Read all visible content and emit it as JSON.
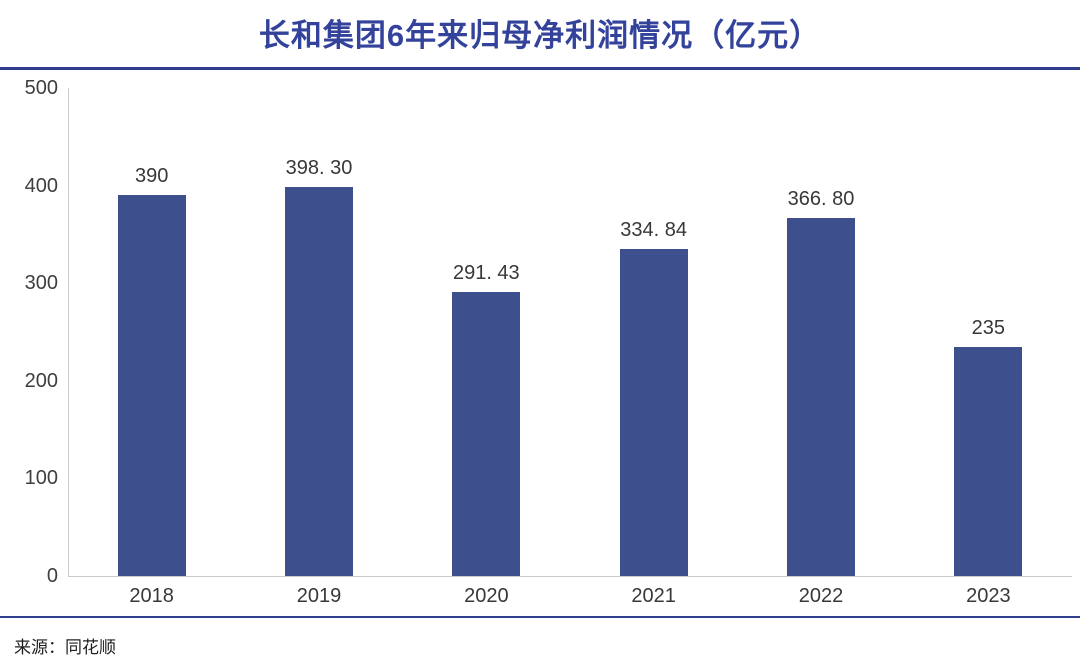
{
  "title": "长和集团6年来归母净利润情况（亿元）",
  "source": "来源：同花顺",
  "colors": {
    "bar": "#3e4f8e",
    "title": "#33429a",
    "rule": "#2f3e8f",
    "axis_line": "#cbcbcb",
    "tick_text": "#3f3f3f",
    "value_text": "#383838"
  },
  "chart_data": {
    "type": "bar",
    "title": "长和集团6年来归母净利润情况（亿元）",
    "categories": [
      "2018",
      "2019",
      "2020",
      "2021",
      "2022",
      "2023"
    ],
    "values": [
      390,
      398.3,
      291.43,
      334.84,
      366.8,
      235
    ],
    "value_labels": [
      "390",
      "398. 30",
      "291. 43",
      "334. 84",
      "366. 80",
      "235"
    ],
    "xlabel": "",
    "ylabel": "",
    "ylim": [
      0,
      500
    ],
    "yticks": [
      0,
      100,
      200,
      300,
      400,
      500
    ],
    "grid": false,
    "legend": "none",
    "source": "来源：同花顺"
  }
}
